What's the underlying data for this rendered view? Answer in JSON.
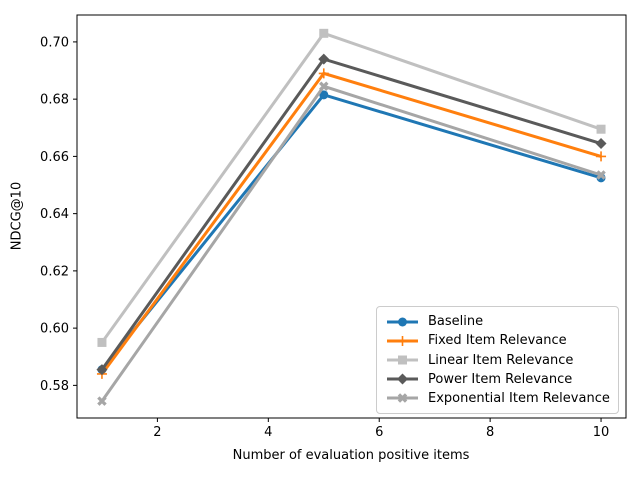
{
  "chart_data": {
    "type": "line",
    "x": [
      1,
      5,
      10
    ],
    "series": [
      {
        "name": "Baseline",
        "color": "#1f77b4",
        "marker": "circle",
        "values": [
          0.5855,
          0.6815,
          0.6525
        ]
      },
      {
        "name": "Fixed Item Relevance",
        "color": "#ff7f0e",
        "marker": "plus",
        "values": [
          0.584,
          0.689,
          0.66
        ]
      },
      {
        "name": "Linear Item Relevance",
        "color": "#c0c0c0",
        "marker": "square",
        "values": [
          0.595,
          0.703,
          0.6695
        ]
      },
      {
        "name": "Power Item Relevance",
        "color": "#5a5a5a",
        "marker": "diamond",
        "values": [
          0.5855,
          0.694,
          0.6645
        ]
      },
      {
        "name": "Exponential Item Relevance",
        "color": "#a6a6a6",
        "marker": "x",
        "values": [
          0.5745,
          0.6845,
          0.6535
        ]
      }
    ],
    "title": "",
    "xlabel": "Number of evaluation positive items",
    "ylabel": "NDCG@10",
    "xlim": [
      0.55,
      10.45
    ],
    "ylim": [
      0.5686,
      0.7094
    ],
    "xticks": [
      2,
      4,
      6,
      8,
      10
    ],
    "xtick_labels": [
      "2",
      "4",
      "6",
      "8",
      "10"
    ],
    "yticks": [
      0.58,
      0.6,
      0.62,
      0.64,
      0.66,
      0.68,
      0.7
    ],
    "ytick_labels": [
      "0.58",
      "0.60",
      "0.62",
      "0.64",
      "0.66",
      "0.68",
      "0.70"
    ],
    "grid": false,
    "legend_position": "lower right",
    "axis_color": "#000000",
    "line_width": 3
  }
}
